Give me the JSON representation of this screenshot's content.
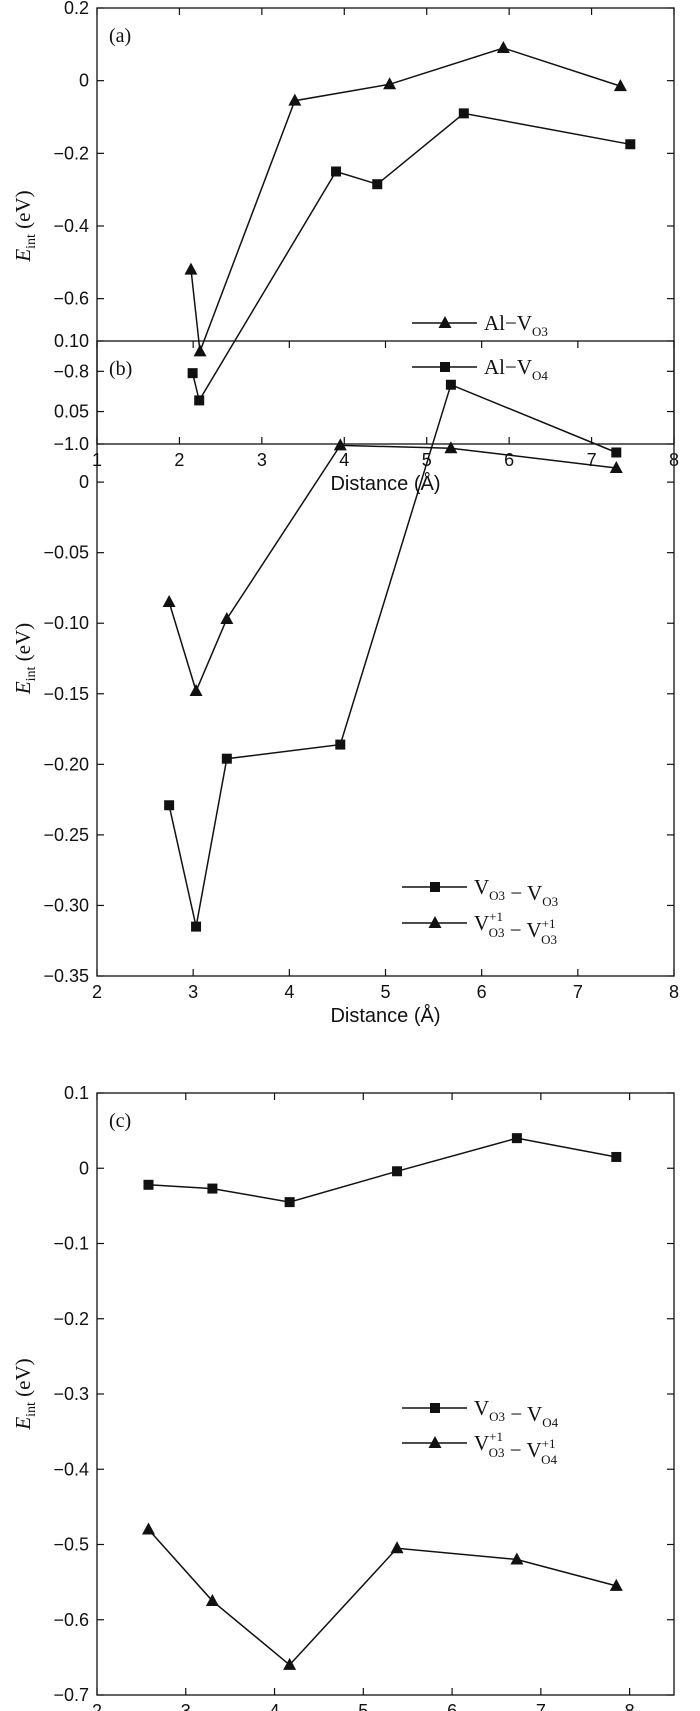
{
  "chart_data": [
    {
      "type": "line",
      "panel_label": "(a)",
      "xlabel": "Distance (Å)",
      "ylabel": "E_int (eV)",
      "ylabel_main": "E",
      "ylabel_sub": "int",
      "ylabel_unit": " (eV)",
      "xlim": [
        1,
        8
      ],
      "ylim": [
        -1.0,
        0.2
      ],
      "xticks": [
        1,
        2,
        3,
        4,
        5,
        6,
        7,
        8
      ],
      "yticks": [
        -1.0,
        -0.8,
        -0.6,
        -0.4,
        -0.2,
        0,
        0.2
      ],
      "ytick_labels": [
        "−1.0",
        "−0.8",
        "−0.6",
        "−0.4",
        "−0.2",
        "0",
        "0.2"
      ],
      "legend_position": "center-right",
      "series": [
        {
          "name": "Al−V_O3",
          "marker": "triangle",
          "legend_main": "Al−V",
          "legend_sub": "O3",
          "x": [
            2.14,
            2.25,
            3.4,
            4.55,
            5.93,
            7.35
          ],
          "y": [
            -0.52,
            -0.745,
            -0.055,
            -0.01,
            0.09,
            -0.015
          ]
        },
        {
          "name": "Al−V_O4",
          "marker": "square",
          "legend_main": "Al−V",
          "legend_sub": "O4",
          "x": [
            2.16,
            2.24,
            3.9,
            4.4,
            5.45,
            7.47
          ],
          "y": [
            -0.805,
            -0.88,
            -0.25,
            -0.285,
            -0.09,
            -0.175
          ]
        }
      ]
    },
    {
      "type": "line",
      "panel_label": "(b)",
      "xlabel": "Distance (Å)",
      "ylabel": "E_int (eV)",
      "ylabel_main": "E",
      "ylabel_sub": "int",
      "ylabel_unit": " (eV)",
      "xlim": [
        2,
        8
      ],
      "ylim": [
        -0.35,
        0.1
      ],
      "xticks": [
        2,
        3,
        4,
        5,
        6,
        7,
        8
      ],
      "yticks": [
        -0.35,
        -0.3,
        -0.25,
        -0.2,
        -0.15,
        -0.1,
        -0.05,
        0,
        0.05,
        0.1
      ],
      "ytick_labels": [
        "−0.35",
        "−0.30",
        "−0.25",
        "−0.20",
        "−0.15",
        "−0.10",
        "−0.05",
        "0",
        "0.05",
        "0.10"
      ],
      "legend_position": "bottom-right",
      "series": [
        {
          "name": "V_O3 − V_O3",
          "marker": "square",
          "legend_parts": [
            "V",
            "O3",
            "",
            " − V",
            "O3",
            ""
          ],
          "x": [
            2.75,
            3.03,
            3.35,
            4.53,
            5.68,
            7.4
          ],
          "y": [
            -0.229,
            -0.315,
            -0.196,
            -0.186,
            0.069,
            0.021
          ]
        },
        {
          "name": "V_O3^+1 − V_O3^+1",
          "marker": "triangle",
          "legend_parts": [
            "V",
            "O3",
            "+1",
            " − V",
            "O3",
            "+1"
          ],
          "x": [
            2.75,
            3.03,
            3.35,
            4.53,
            5.68,
            7.4
          ],
          "y": [
            -0.085,
            -0.148,
            -0.097,
            0.026,
            0.024,
            0.01
          ]
        }
      ]
    },
    {
      "type": "line",
      "panel_label": "(c)",
      "xlabel": "Distance (Å)",
      "ylabel": "E_int (eV)",
      "ylabel_main": "E",
      "ylabel_sub": "int",
      "ylabel_unit": " (eV)",
      "xlim": [
        2,
        8.5
      ],
      "ylim": [
        -0.7,
        0.1
      ],
      "xticks": [
        2,
        3,
        4,
        5,
        6,
        7,
        8
      ],
      "yticks": [
        -0.7,
        -0.6,
        -0.5,
        -0.4,
        -0.3,
        -0.2,
        -0.1,
        0,
        0.1
      ],
      "ytick_labels": [
        "−0.7",
        "−0.6",
        "−0.5",
        "−0.4",
        "−0.3",
        "−0.2",
        "−0.1",
        "0",
        "0.1"
      ],
      "legend_position": "center-right",
      "series": [
        {
          "name": "V_O3 − V_O4",
          "marker": "square",
          "legend_parts": [
            "V",
            "O3",
            "",
            " − V",
            "O4",
            ""
          ],
          "x": [
            2.58,
            3.3,
            4.17,
            5.38,
            6.73,
            7.85
          ],
          "y": [
            -0.022,
            -0.027,
            -0.045,
            -0.004,
            0.04,
            0.015
          ]
        },
        {
          "name": "V_O3^+1 − V_O4^+1",
          "marker": "triangle",
          "legend_parts": [
            "V",
            "O3",
            "+1",
            " − V",
            "O4",
            "+1"
          ],
          "x": [
            2.58,
            3.3,
            4.17,
            5.38,
            6.73,
            7.85
          ],
          "y": [
            -0.48,
            -0.575,
            -0.66,
            -0.505,
            -0.52,
            -0.555
          ]
        }
      ]
    }
  ]
}
